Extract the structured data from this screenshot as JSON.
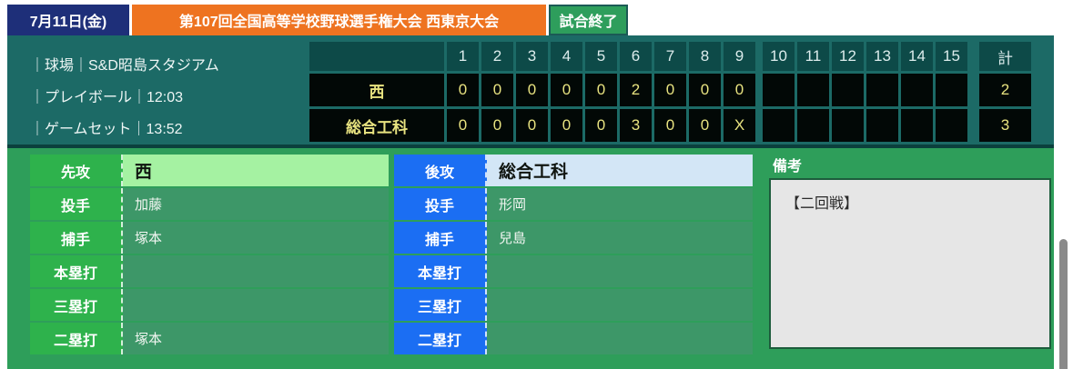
{
  "topbar": {
    "date": "7月11日(金)",
    "tournament": "第107回全国高等学校野球選手権大会 西東京大会",
    "status": "試合終了"
  },
  "info": {
    "lines": [
      "｜球場｜S&D昭島スタジアム",
      "｜プレイボール｜12:03",
      "｜ゲームセット｜13:52"
    ]
  },
  "scoreboard": {
    "innings": [
      "1",
      "2",
      "3",
      "4",
      "5",
      "6",
      "7",
      "8",
      "9",
      "10",
      "11",
      "12",
      "13",
      "14",
      "15"
    ],
    "total_label": "計",
    "teams": [
      {
        "name": "西",
        "scores": [
          "0",
          "0",
          "0",
          "0",
          "0",
          "2",
          "0",
          "0",
          "0",
          "",
          "",
          "",
          "",
          "",
          ""
        ],
        "total": "2"
      },
      {
        "name": "総合工科",
        "scores": [
          "0",
          "0",
          "0",
          "0",
          "0",
          "3",
          "0",
          "0",
          "X",
          "",
          "",
          "",
          "",
          "",
          ""
        ],
        "total": "3"
      }
    ]
  },
  "teams_table": {
    "left": {
      "rows": [
        {
          "label": "先攻",
          "value": "西"
        },
        {
          "label": "投手",
          "value": "加藤"
        },
        {
          "label": "捕手",
          "value": "塚本"
        },
        {
          "label": "本塁打",
          "value": ""
        },
        {
          "label": "三塁打",
          "value": ""
        },
        {
          "label": "二塁打",
          "value": "塚本"
        }
      ]
    },
    "right": {
      "rows": [
        {
          "label": "後攻",
          "value": "総合工科"
        },
        {
          "label": "投手",
          "value": "形岡"
        },
        {
          "label": "捕手",
          "value": "兒島"
        },
        {
          "label": "本塁打",
          "value": ""
        },
        {
          "label": "三塁打",
          "value": ""
        },
        {
          "label": "二塁打",
          "value": ""
        }
      ]
    }
  },
  "remarks": {
    "title": "備考",
    "content": "【二回戦】"
  },
  "colors": {
    "teal_bg": "#1c6a66",
    "header_cell_bg": "#0d4a48",
    "score_cell_bg": "#020806",
    "score_text": "#e8e380",
    "date_bg": "#1e2f79",
    "tournament_bg": "#ee7320",
    "status_bg": "#2e9e5c",
    "section_bg": "#2e9e5a",
    "label_green": "#2eb24c",
    "label_blue": "#1b6ef3",
    "value_green": "#3d9768",
    "first_left_bg": "#a5f2a2",
    "first_right_bg": "#d3e6f6",
    "remarks_box_bg": "#e6e6e6"
  }
}
